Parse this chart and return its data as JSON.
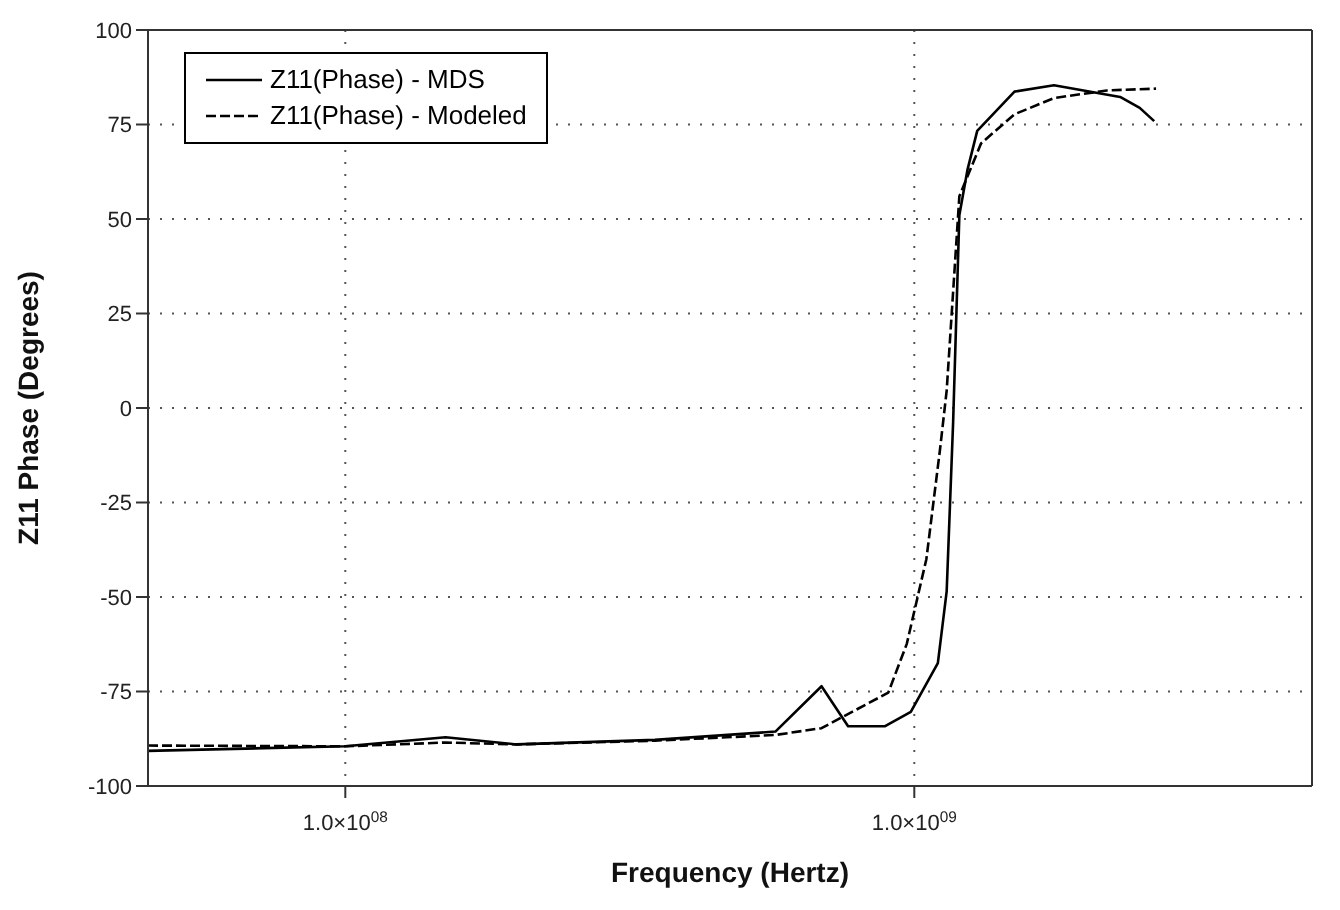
{
  "chart_data": {
    "type": "line",
    "xlabel": "Frequency (Hertz)",
    "ylabel": "Z11 Phase (Degrees)",
    "log": "x",
    "xlim": [
      45000000,
      5000000000
    ],
    "xticks": [
      {
        "value": 100000000,
        "label": "1.0×10$^{08}$"
      },
      {
        "value": 1000000000,
        "label": "1.0×10$^{09}$"
      }
    ],
    "ylim": [
      -100,
      100
    ],
    "yticks": [
      -100,
      -75,
      -50,
      -25,
      0,
      25,
      50,
      75,
      100
    ],
    "grid": true,
    "legend": "top left",
    "series": [
      {
        "name": "Z11(Phase) - MDS",
        "color": "#000000",
        "line_style": "solid",
        "x": [
          45000000,
          100000000,
          150000000,
          200000000,
          350000000,
          570000000,
          687000000,
          765000000,
          887000000,
          986000000,
          1100000000,
          1140000000,
          1170000000,
          1200000000,
          1240000000,
          1290000000,
          1500000000,
          1760000000,
          2300000000,
          2490000000,
          2640000000
        ],
        "values": [
          -90.7,
          -89.5,
          -87.1,
          -89,
          -87.8,
          -85.6,
          -73.6,
          -84.2,
          -84.2,
          -80.4,
          -67.5,
          -48.5,
          -4,
          51,
          63,
          73.3,
          83.7,
          85.4,
          82.3,
          79.4,
          75.9
        ]
      },
      {
        "name": "Z11(Phase) - Modeled",
        "color": "#000000",
        "line_style": "dashed",
        "x": [
          45000000,
          100000000,
          150000000,
          200000000,
          350000000,
          570000000,
          687000000,
          900000000,
          970000000,
          1050000000,
          1110000000,
          1140000000,
          1200000000,
          1310000000,
          1500000000,
          1760000000,
          2180000000,
          2660000000
        ],
        "values": [
          -89.3,
          -89.5,
          -88.5,
          -89,
          -88,
          -86.5,
          -84.7,
          -75.3,
          -62.4,
          -40,
          -10.8,
          4.6,
          56,
          70,
          77.7,
          82,
          84,
          84.5
        ]
      }
    ]
  }
}
